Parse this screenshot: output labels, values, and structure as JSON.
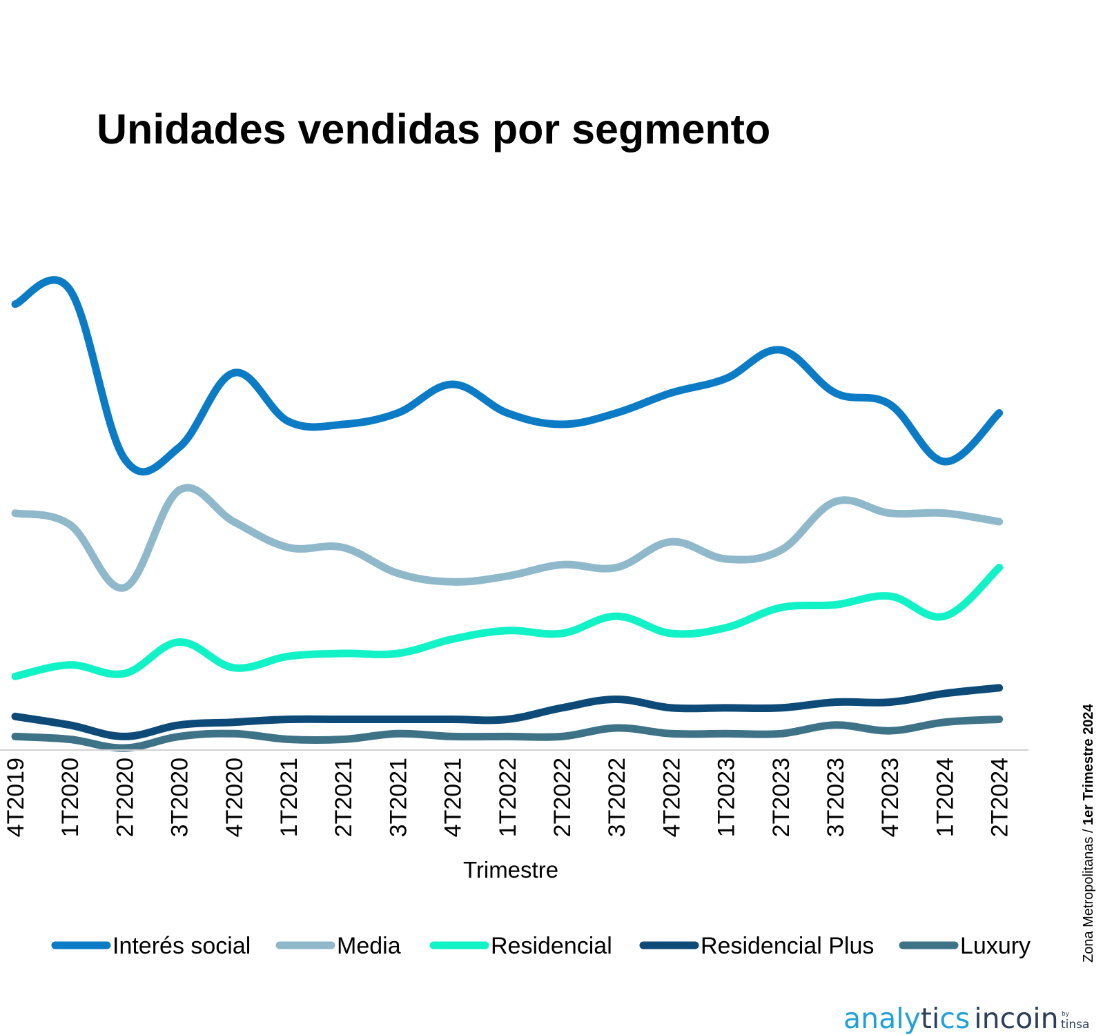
{
  "chart_data": {
    "type": "line",
    "title": "Unidades vendidas por segmento",
    "xlabel": "Trimestre",
    "ylabel": "",
    "ylim": [
      0,
      160
    ],
    "grid": false,
    "legend_position": "bottom",
    "y_axis_labels_visible": false,
    "categories": [
      "4T2019",
      "1T2020",
      "2T2020",
      "3T2020",
      "4T2020",
      "1T2021",
      "2T2021",
      "3T2021",
      "4T2021",
      "1T2022",
      "2T2022",
      "3T2022",
      "4T2022",
      "1T2023",
      "2T2023",
      "3T2023",
      "4T2023",
      "1T2024",
      "2T2024"
    ],
    "series": [
      {
        "name": "Interés social",
        "color": "#0A7BC4",
        "values": [
          155,
          160,
          101,
          105,
          131,
          114,
          113,
          117,
          127,
          117,
          113,
          117,
          124,
          129,
          139,
          124,
          120,
          100,
          117
        ]
      },
      {
        "name": "Media",
        "color": "#8FB8CB",
        "values": [
          82,
          78,
          56,
          90,
          79,
          70,
          70,
          61,
          58,
          60,
          64,
          63,
          72,
          66,
          69,
          86,
          82,
          82,
          79
        ]
      },
      {
        "name": "Residencial",
        "color": "#12F2C7",
        "values": [
          25,
          29,
          26,
          37,
          28,
          32,
          33,
          33,
          38,
          41,
          40,
          46,
          40,
          42,
          49,
          50,
          53,
          46,
          63
        ]
      },
      {
        "name": "Residencial Plus",
        "color": "#0D4A78",
        "values": [
          11,
          8,
          4,
          8,
          9,
          10,
          10,
          10,
          10,
          10,
          14,
          17,
          14,
          14,
          14,
          16,
          16,
          19,
          21
        ]
      },
      {
        "name": "Luxury",
        "color": "#3E7287",
        "values": [
          4,
          3,
          0,
          4,
          5,
          3,
          3,
          5,
          4,
          4,
          4,
          7,
          5,
          5,
          5,
          8,
          6,
          9,
          10
        ]
      }
    ]
  },
  "side_note": {
    "region": "Zona Metropolitanas",
    "separator": " / ",
    "period": "1er Trimestre 2024"
  },
  "logo": {
    "part1": "analy",
    "part2": "ti",
    "part3": "cs",
    "part4": "incoin",
    "by": "by",
    "brand": "tinsa"
  }
}
